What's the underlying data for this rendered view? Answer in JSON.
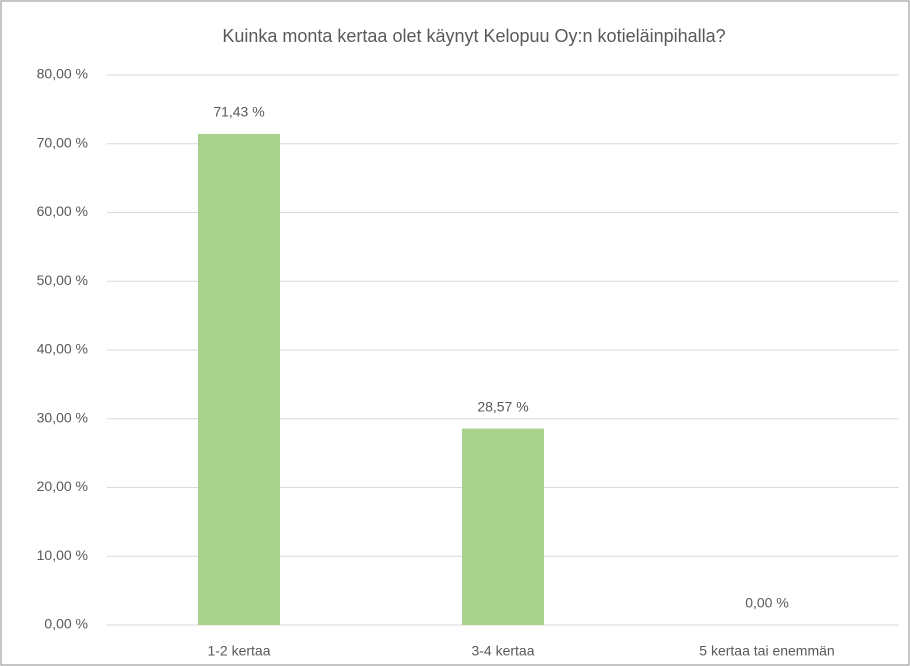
{
  "chart_data": {
    "type": "bar",
    "title": "Kuinka monta kertaa olet käynyt Kelopuu Oy:n kotieläinpihalla?",
    "categories": [
      "1-2 kertaa",
      "3-4 kertaa",
      "5 kertaa tai enemmän"
    ],
    "values": [
      71.43,
      28.57,
      0
    ],
    "value_labels": [
      "71,43 %",
      "28,57 %",
      "0,00 %"
    ],
    "color": "#a9d18e",
    "ylim": [
      0,
      80
    ],
    "yticks": [
      {
        "value": 0,
        "label": "0,00 %"
      },
      {
        "value": 10,
        "label": "10,00 %"
      },
      {
        "value": 20,
        "label": "20,00 %"
      },
      {
        "value": 30,
        "label": "30,00 %"
      },
      {
        "value": 40,
        "label": "40,00 %"
      },
      {
        "value": 50,
        "label": "50,00 %"
      },
      {
        "value": 60,
        "label": "60,00 %"
      },
      {
        "value": 70,
        "label": "70,00 %"
      },
      {
        "value": 80,
        "label": "80,00 %"
      }
    ],
    "grid": true
  }
}
